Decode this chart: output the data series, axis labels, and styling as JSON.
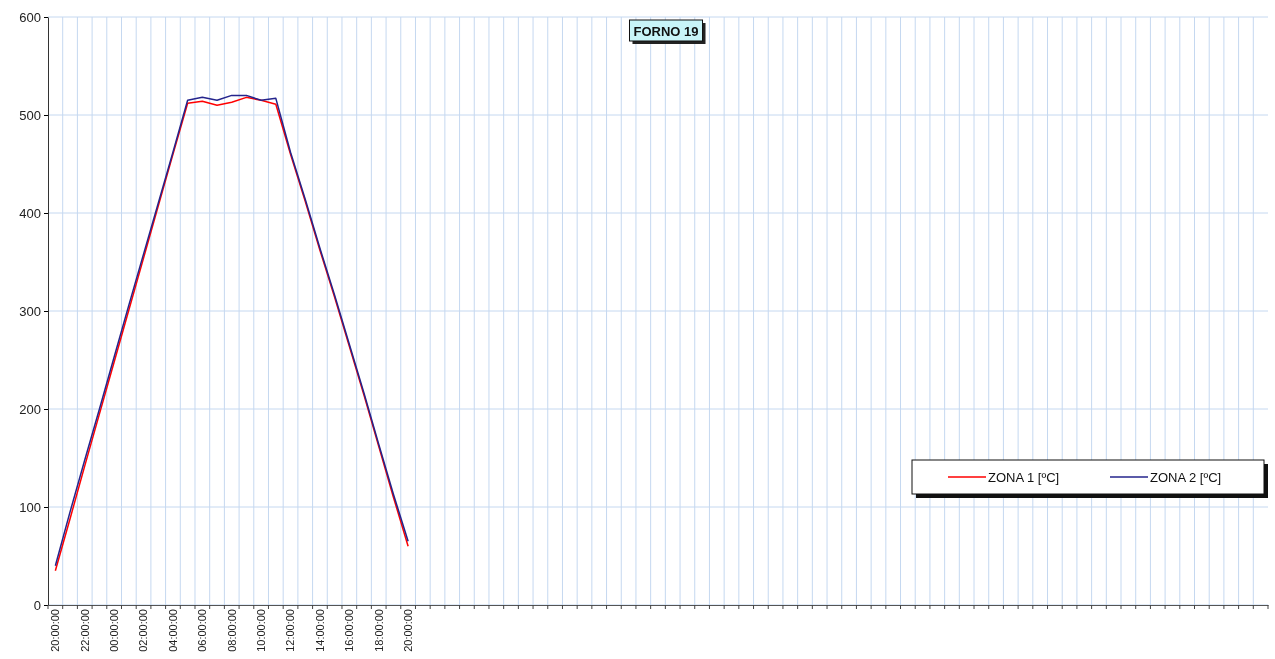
{
  "chart_data": {
    "type": "line",
    "title": "FORNO 19",
    "categories": [
      "20:00:00",
      null,
      "22:00:00",
      null,
      "00:00:00",
      null,
      "02:00:00",
      null,
      "04:00:00",
      null,
      "06:00:00",
      null,
      "08:00:00",
      null,
      "10:00:00",
      null,
      "12:00:00",
      null,
      "14:00:00",
      null,
      "16:00:00",
      null,
      "18:00:00",
      null,
      "20:00:00",
      null,
      null,
      null,
      null,
      null,
      null,
      null,
      null,
      null,
      null,
      null,
      null,
      null,
      null,
      null,
      null,
      null,
      null,
      null,
      null,
      null,
      null,
      null,
      null,
      null,
      null,
      null,
      null,
      null,
      null,
      null,
      null,
      null,
      null,
      null,
      null,
      null,
      null,
      null,
      null,
      null,
      null,
      null,
      null,
      null,
      null,
      null,
      null,
      null,
      null,
      null,
      null,
      null,
      null,
      null,
      null,
      null,
      null
    ],
    "series": [
      {
        "name": "ZONA 1 [ºC]",
        "color": "#ff0000",
        "values": [
          35,
          88,
          142,
          195,
          248,
          301,
          354,
          407,
          460,
          512,
          514,
          510,
          513,
          518,
          515,
          511,
          460,
          412,
          362,
          314,
          264,
          214,
          162,
          110,
          60,
          null,
          null,
          null,
          null,
          null,
          null,
          null,
          null,
          null,
          null,
          null,
          null,
          null,
          null,
          null,
          null,
          null,
          null,
          null,
          null,
          null,
          null,
          null,
          null,
          null,
          null,
          null,
          null,
          null,
          null,
          null,
          null,
          null,
          null,
          null,
          null,
          null,
          null,
          null,
          null,
          null,
          null,
          null,
          null,
          null,
          null,
          null,
          null,
          null,
          null,
          null,
          null,
          null,
          null,
          null,
          null,
          null,
          null
        ]
      },
      {
        "name": "ZONA 2 [ºC]",
        "color": "#24248c",
        "values": [
          40,
          95,
          148,
          200,
          253,
          306,
          358,
          410,
          462,
          515,
          518,
          515,
          520,
          520,
          515,
          517,
          462,
          414,
          364,
          316,
          266,
          216,
          164,
          113,
          65,
          null,
          null,
          null,
          null,
          null,
          null,
          null,
          null,
          null,
          null,
          null,
          null,
          null,
          null,
          null,
          null,
          null,
          null,
          null,
          null,
          null,
          null,
          null,
          null,
          null,
          null,
          null,
          null,
          null,
          null,
          null,
          null,
          null,
          null,
          null,
          null,
          null,
          null,
          null,
          null,
          null,
          null,
          null,
          null,
          null,
          null,
          null,
          null,
          null,
          null,
          null,
          null,
          null,
          null,
          null,
          null,
          null,
          null
        ]
      }
    ],
    "ylim": [
      0,
      600
    ],
    "yticks": [
      0,
      100,
      200,
      300,
      400,
      500,
      600
    ],
    "grid": true,
    "legend": "right",
    "line_style": "solid",
    "marker": "none"
  }
}
